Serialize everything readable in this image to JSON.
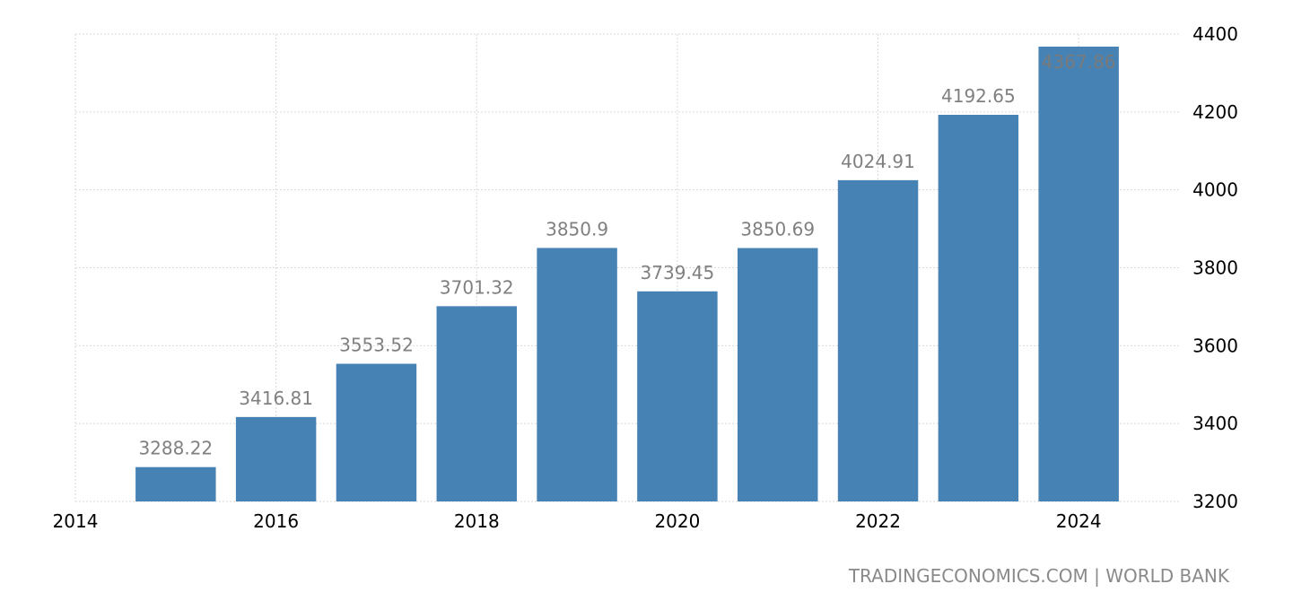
{
  "source_credit": "TRADINGECONOMICS.COM | WORLD BANK",
  "colors": {
    "bar": "#4682b4",
    "label": "#808080",
    "grid": "#d9d9d9"
  },
  "chart_data": {
    "type": "bar",
    "categories": [
      2015,
      2016,
      2017,
      2018,
      2019,
      2020,
      2021,
      2022,
      2023,
      2024
    ],
    "values": [
      3288.22,
      3416.81,
      3553.52,
      3701.32,
      3850.9,
      3739.45,
      3850.69,
      4024.91,
      4192.65,
      4367.86
    ],
    "data_labels": [
      "3288.22",
      "3416.81",
      "3553.52",
      "3701.32",
      "3850.9",
      "3739.45",
      "3850.69",
      "4024.91",
      "4192.65",
      "4367.86"
    ],
    "x_ticks": [
      "2014",
      "2016",
      "2018",
      "2020",
      "2022",
      "2024"
    ],
    "x_tick_values": [
      2014,
      2016,
      2018,
      2020,
      2022,
      2024
    ],
    "y_ticks": [
      "3200",
      "3400",
      "3600",
      "3800",
      "4000",
      "4200",
      "4400"
    ],
    "y_tick_values": [
      3200,
      3400,
      3600,
      3800,
      4000,
      4200,
      4400
    ],
    "xlim": [
      2014,
      2025
    ],
    "ylim": [
      3200,
      4400
    ],
    "y_axis_side": "right",
    "grid": true,
    "legend": "none",
    "title": "",
    "xlabel": "",
    "ylabel": ""
  }
}
